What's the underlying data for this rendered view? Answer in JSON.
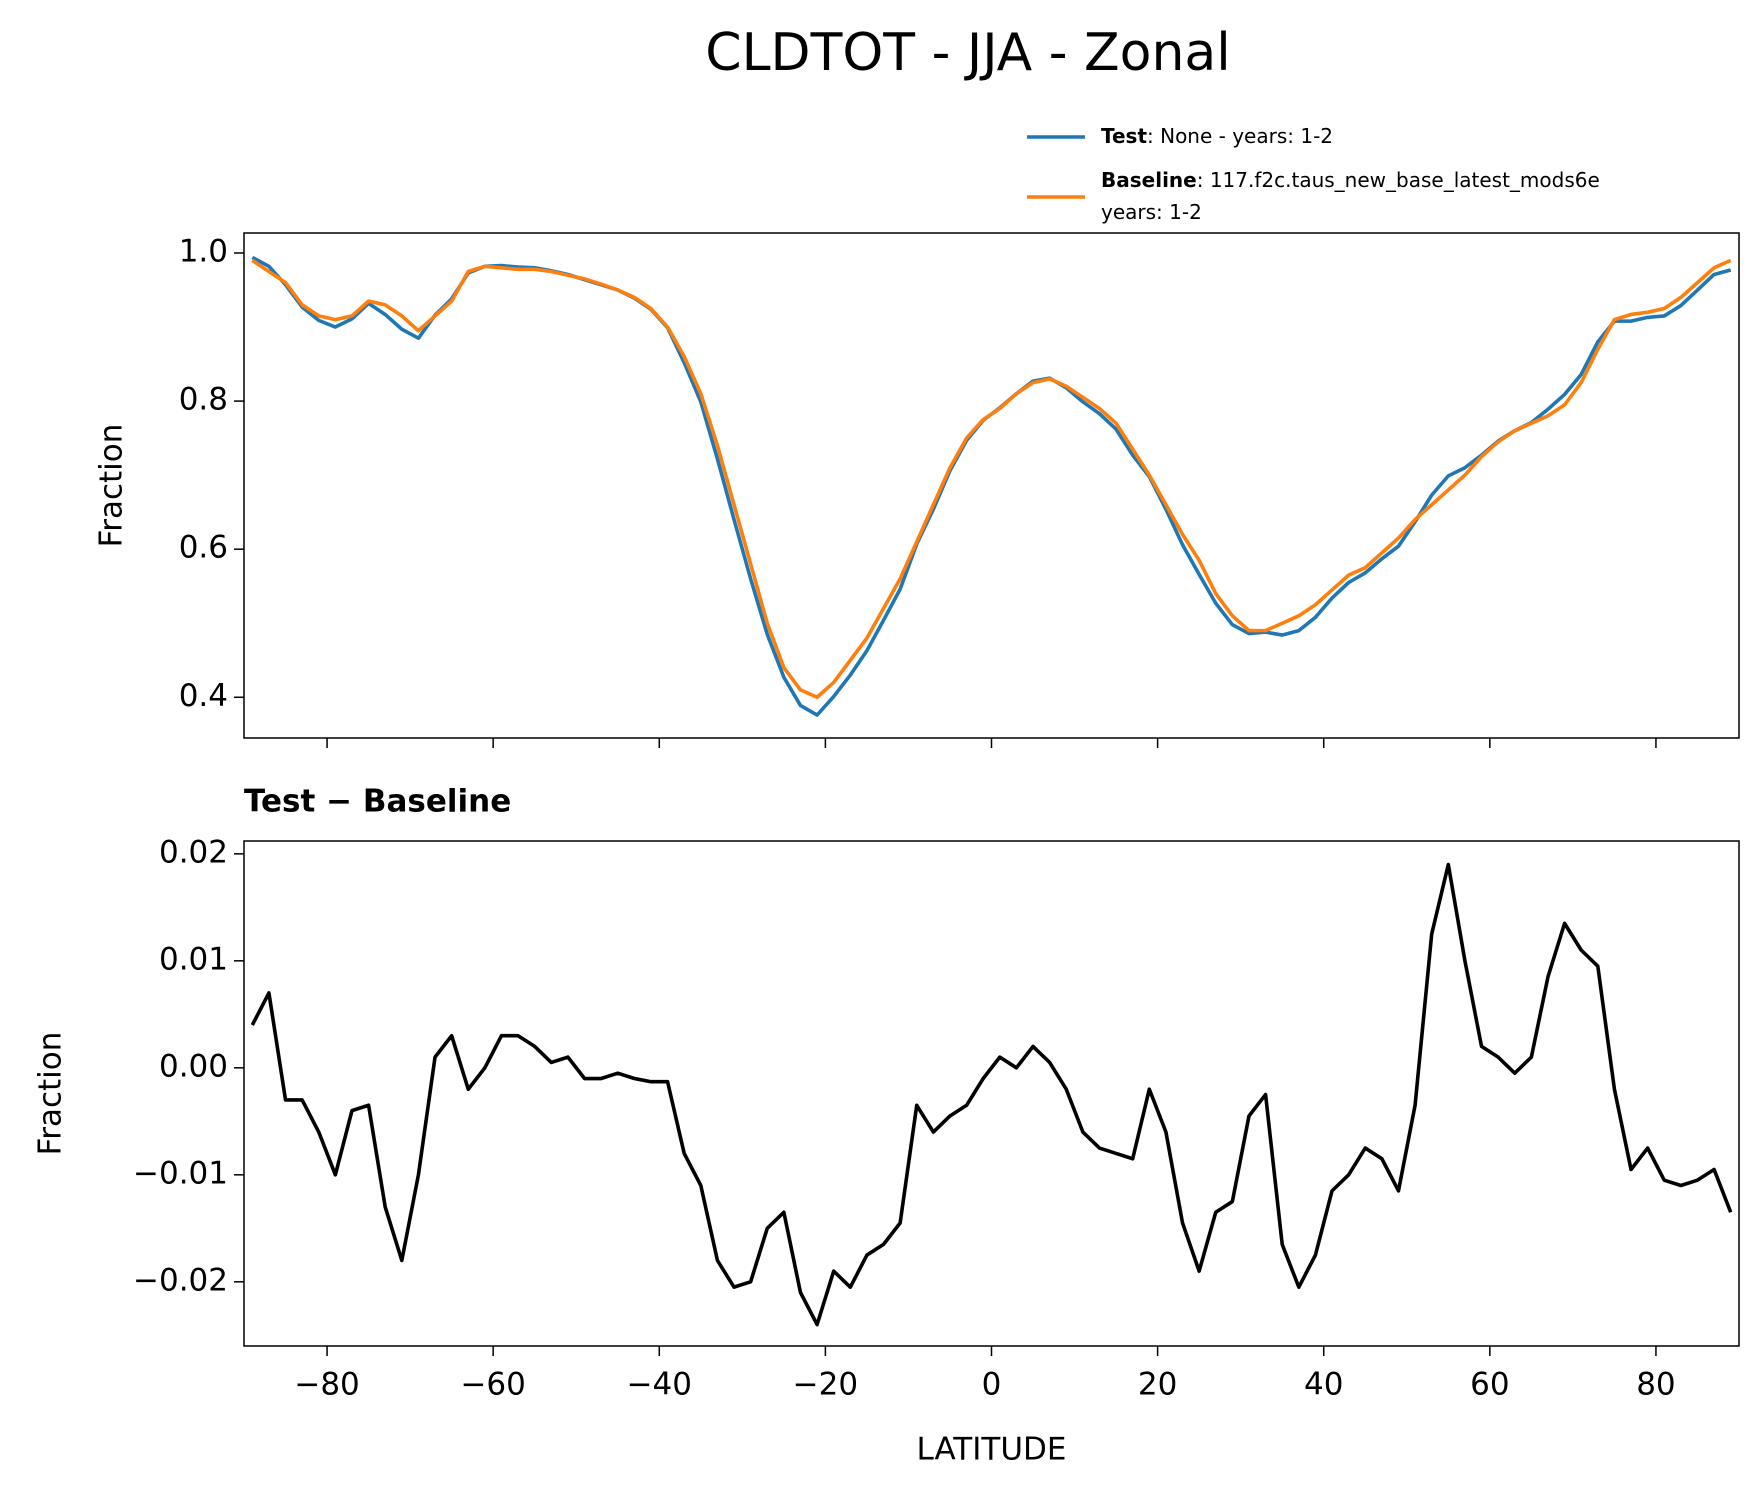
{
  "chart_data": [
    {
      "type": "line",
      "title": "CLDTOT - JJA - Zonal",
      "ylabel": "Fraction",
      "x": [
        -89,
        -87,
        -85,
        -83,
        -81,
        -79,
        -77,
        -75,
        -73,
        -71,
        -69,
        -67,
        -65,
        -63,
        -61,
        -59,
        -57,
        -55,
        -53,
        -51,
        -49,
        -47,
        -45,
        -43,
        -41,
        -39,
        -37,
        -35,
        -33,
        -31,
        -29,
        -27,
        -25,
        -23,
        -21,
        -19,
        -17,
        -15,
        -13,
        -11,
        -9,
        -7,
        -5,
        -3,
        -1,
        1,
        3,
        5,
        7,
        9,
        11,
        13,
        15,
        17,
        19,
        21,
        23,
        25,
        27,
        29,
        31,
        33,
        35,
        37,
        39,
        41,
        43,
        45,
        47,
        49,
        51,
        53,
        55,
        57,
        59,
        61,
        63,
        65,
        67,
        69,
        71,
        73,
        75,
        77,
        79,
        81,
        83,
        85,
        87,
        89
      ],
      "series": [
        {
          "name": "Test",
          "description": [
            ": None - years: 1-2"
          ],
          "color": "#1f77b4",
          "values": [
            0.994,
            0.982,
            0.957,
            0.927,
            0.909,
            0.9,
            0.911,
            0.932,
            0.917,
            0.897,
            0.885,
            0.916,
            0.938,
            0.973,
            0.982,
            0.983,
            0.981,
            0.98,
            0.976,
            0.971,
            0.964,
            0.957,
            0.95,
            0.939,
            0.924,
            0.899,
            0.852,
            0.799,
            0.722,
            0.64,
            0.56,
            0.485,
            0.427,
            0.389,
            0.376,
            0.401,
            0.43,
            0.463,
            0.504,
            0.546,
            0.607,
            0.654,
            0.706,
            0.747,
            0.774,
            0.791,
            0.81,
            0.827,
            0.831,
            0.818,
            0.799,
            0.783,
            0.762,
            0.727,
            0.698,
            0.654,
            0.606,
            0.566,
            0.527,
            0.498,
            0.486,
            0.488,
            0.484,
            0.49,
            0.508,
            0.534,
            0.555,
            0.568,
            0.587,
            0.604,
            0.637,
            0.673,
            0.699,
            0.71,
            0.727,
            0.746,
            0.76,
            0.771,
            0.789,
            0.809,
            0.836,
            0.88,
            0.908,
            0.908,
            0.913,
            0.915,
            0.929,
            0.95,
            0.971,
            0.977
          ]
        },
        {
          "name": "Baseline",
          "description": [
            ": 117.f2c.taus_new_base_latest_mods6e",
            "years: 1-2"
          ],
          "color": "#ff7f0e",
          "values": [
            0.99,
            0.975,
            0.96,
            0.93,
            0.915,
            0.91,
            0.915,
            0.935,
            0.93,
            0.915,
            0.895,
            0.915,
            0.935,
            0.975,
            0.982,
            0.98,
            0.978,
            0.978,
            0.975,
            0.97,
            0.965,
            0.958,
            0.95,
            0.94,
            0.925,
            0.9,
            0.86,
            0.81,
            0.74,
            0.66,
            0.58,
            0.5,
            0.44,
            0.41,
            0.4,
            0.42,
            0.45,
            0.48,
            0.52,
            0.56,
            0.61,
            0.66,
            0.71,
            0.75,
            0.775,
            0.79,
            0.81,
            0.825,
            0.83,
            0.82,
            0.805,
            0.79,
            0.77,
            0.735,
            0.7,
            0.66,
            0.62,
            0.585,
            0.54,
            0.51,
            0.49,
            0.49,
            0.5,
            0.51,
            0.525,
            0.545,
            0.565,
            0.575,
            0.595,
            0.615,
            0.64,
            0.66,
            0.68,
            0.7,
            0.725,
            0.745,
            0.76,
            0.77,
            0.78,
            0.795,
            0.825,
            0.87,
            0.91,
            0.917,
            0.92,
            0.925,
            0.94,
            0.96,
            0.98,
            0.99
          ]
        }
      ],
      "xlim": [
        -90,
        90
      ],
      "xticks": [
        -80,
        -60,
        -40,
        -20,
        0,
        20,
        40,
        60,
        80
      ],
      "ylim": [
        0.345,
        1.027
      ],
      "yticks": [
        0.4,
        0.6,
        0.8,
        {
          "value": 1.0,
          "label": "1.0"
        }
      ]
    },
    {
      "type": "line",
      "title": "Test − Baseline",
      "ylabel": "Fraction",
      "xlabel": "LATITUDE",
      "x": [
        -89,
        -87,
        -85,
        -83,
        -81,
        -79,
        -77,
        -75,
        -73,
        -71,
        -69,
        -67,
        -65,
        -63,
        -61,
        -59,
        -57,
        -55,
        -53,
        -51,
        -49,
        -47,
        -45,
        -43,
        -41,
        -39,
        -37,
        -35,
        -33,
        -31,
        -29,
        -27,
        -25,
        -23,
        -21,
        -19,
        -17,
        -15,
        -13,
        -11,
        -9,
        -7,
        -5,
        -3,
        -1,
        1,
        3,
        5,
        7,
        9,
        11,
        13,
        15,
        17,
        19,
        21,
        23,
        25,
        27,
        29,
        31,
        33,
        35,
        37,
        39,
        41,
        43,
        45,
        47,
        49,
        51,
        53,
        55,
        57,
        59,
        61,
        63,
        65,
        67,
        69,
        71,
        73,
        75,
        77,
        79,
        81,
        83,
        85,
        87,
        89
      ],
      "series": [
        {
          "color": "#000000",
          "values": [
            0.004,
            0.007,
            -0.003,
            -0.003,
            -0.006,
            -0.01,
            -0.004,
            -0.0035,
            -0.013,
            -0.018,
            -0.01,
            0.001,
            0.003,
            -0.002,
            0.0,
            0.003,
            0.003,
            0.002,
            0.0005,
            0.001,
            -0.001,
            -0.001,
            -0.0005,
            -0.001,
            -0.0013,
            -0.0013,
            -0.008,
            -0.011,
            -0.018,
            -0.0205,
            -0.02,
            -0.015,
            -0.0135,
            -0.021,
            -0.024,
            -0.019,
            -0.0205,
            -0.0175,
            -0.0165,
            -0.0145,
            -0.0035,
            -0.006,
            -0.0045,
            -0.0035,
            -0.001,
            0.001,
            0.0,
            0.002,
            0.0005,
            -0.002,
            -0.006,
            -0.0075,
            -0.008,
            -0.0085,
            -0.002,
            -0.006,
            -0.0145,
            -0.019,
            -0.0135,
            -0.0125,
            -0.0045,
            -0.0025,
            -0.0165,
            -0.0205,
            -0.0175,
            -0.0115,
            -0.01,
            -0.0075,
            -0.0085,
            -0.0115,
            -0.0035,
            0.0125,
            0.019,
            0.01,
            0.002,
            0.001,
            -0.0005,
            0.001,
            0.0085,
            0.0135,
            0.011,
            0.0095,
            -0.002,
            -0.0095,
            -0.0075,
            -0.0105,
            -0.011,
            -0.0105,
            -0.0095,
            -0.0135
          ]
        }
      ],
      "xlim": [
        -90,
        90
      ],
      "xticks": [
        {
          "value": -80,
          "label": "−80"
        },
        {
          "value": -60,
          "label": "−60"
        },
        {
          "value": -40,
          "label": "−40"
        },
        {
          "value": -20,
          "label": "−20"
        },
        0,
        20,
        40,
        60,
        80
      ],
      "ylim": [
        -0.026,
        0.0212
      ],
      "yticks": [
        {
          "value": -0.02,
          "label": "−0.02"
        },
        {
          "value": -0.01,
          "label": "−0.01"
        },
        {
          "value": 0,
          "label": "0.00"
        },
        0.01,
        0.02
      ]
    }
  ]
}
